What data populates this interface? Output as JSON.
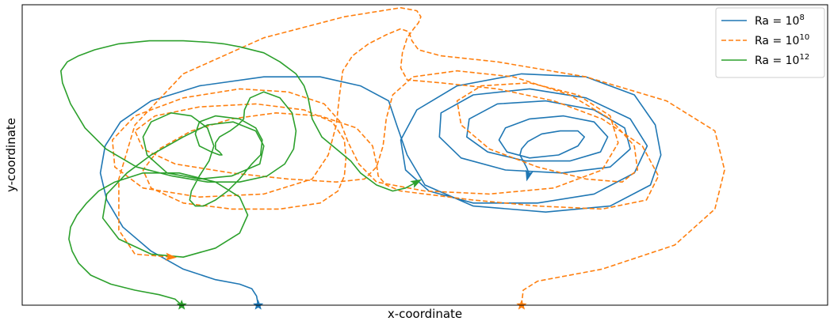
{
  "chart_data": {
    "type": "line",
    "title": "",
    "xlabel": "x-coordinate",
    "ylabel": "y-coordinate",
    "xlim": [
      0,
      1
    ],
    "ylim": [
      0,
      1
    ],
    "xticks": "none",
    "yticks": "none",
    "grid": false,
    "legend_position": "top-right",
    "series": [
      {
        "name": "Ra = 10^8",
        "label_base": "Ra = 10",
        "label_exp": "8",
        "color": "#1f77b4",
        "linestyle": "solid",
        "start_marker": "star",
        "end_marker": "arrow",
        "x": [
          0.293,
          0.291,
          0.285,
          0.27,
          0.24,
          0.2,
          0.16,
          0.125,
          0.105,
          0.097,
          0.103,
          0.122,
          0.16,
          0.22,
          0.3,
          0.37,
          0.42,
          0.455,
          0.465,
          0.478,
          0.5,
          0.56,
          0.65,
          0.73,
          0.78,
          0.793,
          0.786,
          0.76,
          0.7,
          0.62,
          0.54,
          0.49,
          0.47,
          0.476,
          0.505,
          0.56,
          0.64,
          0.71,
          0.76,
          0.776,
          0.755,
          0.7,
          0.63,
          0.56,
          0.52,
          0.518,
          0.545,
          0.6,
          0.67,
          0.73,
          0.755,
          0.748,
          0.71,
          0.65,
          0.59,
          0.555,
          0.552,
          0.578,
          0.625,
          0.68,
          0.718,
          0.727,
          0.71,
          0.672,
          0.63,
          0.6,
          0.592,
          0.602,
          0.63,
          0.666,
          0.69,
          0.698,
          0.69,
          0.668,
          0.645,
          0.628,
          0.62,
          0.618,
          0.622,
          0.626,
          0.629,
          0.628
        ],
        "y": [
          0.0,
          0.03,
          0.055,
          0.07,
          0.085,
          0.12,
          0.18,
          0.26,
          0.35,
          0.44,
          0.53,
          0.61,
          0.68,
          0.73,
          0.76,
          0.76,
          0.73,
          0.68,
          0.6,
          0.5,
          0.4,
          0.33,
          0.31,
          0.33,
          0.4,
          0.5,
          0.6,
          0.7,
          0.76,
          0.77,
          0.73,
          0.65,
          0.55,
          0.45,
          0.38,
          0.34,
          0.34,
          0.37,
          0.44,
          0.53,
          0.62,
          0.69,
          0.72,
          0.7,
          0.64,
          0.56,
          0.49,
          0.45,
          0.44,
          0.46,
          0.52,
          0.59,
          0.65,
          0.68,
          0.67,
          0.62,
          0.56,
          0.51,
          0.48,
          0.48,
          0.51,
          0.56,
          0.61,
          0.63,
          0.62,
          0.59,
          0.55,
          0.51,
          0.49,
          0.5,
          0.53,
          0.56,
          0.58,
          0.58,
          0.57,
          0.545,
          0.52,
          0.5,
          0.48,
          0.46,
          0.44,
          0.43
        ]
      },
      {
        "name": "Ra = 10^10",
        "label_base": "Ra = 10",
        "label_exp": "10",
        "color": "#ff7f0e",
        "linestyle": "dashed",
        "start_marker": "star",
        "end_marker": "arrow",
        "x": [
          0.62,
          0.622,
          0.64,
          0.72,
          0.81,
          0.86,
          0.872,
          0.86,
          0.8,
          0.7,
          0.59,
          0.52,
          0.492,
          0.484,
          0.48,
          0.47,
          0.452,
          0.43,
          0.41,
          0.398,
          0.394,
          0.39,
          0.38,
          0.36,
          0.3,
          0.22,
          0.15,
          0.115,
          0.112,
          0.14,
          0.2,
          0.27,
          0.33,
          0.375,
          0.395,
          0.405,
          0.418,
          0.44,
          0.5,
          0.58,
          0.66,
          0.72,
          0.74,
          0.73,
          0.69,
          0.63,
          0.57,
          0.54,
          0.545,
          0.58,
          0.64,
          0.7,
          0.745,
          0.764,
          0.76,
          0.73,
          0.68,
          0.61,
          0.54,
          0.485,
          0.46,
          0.452,
          0.448,
          0.44,
          0.425,
          0.39,
          0.33,
          0.26,
          0.19,
          0.15,
          0.14,
          0.165,
          0.22,
          0.29,
          0.35,
          0.385,
          0.4,
          0.402,
          0.4,
          0.392,
          0.37,
          0.32,
          0.26,
          0.2,
          0.16,
          0.15,
          0.17,
          0.21,
          0.26,
          0.315,
          0.37,
          0.415,
          0.435,
          0.44,
          0.442,
          0.452,
          0.47,
          0.5,
          0.56,
          0.64,
          0.72,
          0.775,
          0.79,
          0.77,
          0.72,
          0.66,
          0.59,
          0.52,
          0.478,
          0.47,
          0.472,
          0.478,
          0.486,
          0.492,
          0.495,
          0.49,
          0.47,
          0.4,
          0.3,
          0.2,
          0.14,
          0.12,
          0.12,
          0.14,
          0.185
        ],
        "y": [
          0.0,
          0.05,
          0.08,
          0.12,
          0.2,
          0.32,
          0.45,
          0.58,
          0.68,
          0.76,
          0.81,
          0.83,
          0.85,
          0.88,
          0.91,
          0.92,
          0.9,
          0.87,
          0.83,
          0.78,
          0.7,
          0.6,
          0.5,
          0.42,
          0.37,
          0.36,
          0.39,
          0.46,
          0.55,
          0.63,
          0.69,
          0.72,
          0.71,
          0.67,
          0.61,
          0.54,
          0.47,
          0.41,
          0.38,
          0.37,
          0.39,
          0.45,
          0.54,
          0.63,
          0.7,
          0.74,
          0.73,
          0.68,
          0.6,
          0.52,
          0.46,
          0.42,
          0.41,
          0.45,
          0.53,
          0.62,
          0.7,
          0.76,
          0.78,
          0.76,
          0.7,
          0.62,
          0.53,
          0.46,
          0.42,
          0.41,
          0.42,
          0.44,
          0.47,
          0.52,
          0.58,
          0.63,
          0.66,
          0.67,
          0.65,
          0.61,
          0.55,
          0.49,
          0.43,
          0.38,
          0.34,
          0.32,
          0.32,
          0.34,
          0.39,
          0.45,
          0.52,
          0.58,
          0.62,
          0.64,
          0.63,
          0.59,
          0.53,
          0.47,
          0.43,
          0.4,
          0.38,
          0.37,
          0.35,
          0.33,
          0.32,
          0.35,
          0.43,
          0.53,
          0.62,
          0.68,
          0.72,
          0.74,
          0.75,
          0.79,
          0.84,
          0.89,
          0.92,
          0.94,
          0.96,
          0.98,
          0.99,
          0.96,
          0.89,
          0.77,
          0.6,
          0.42,
          0.25,
          0.17,
          0.16
        ]
      },
      {
        "name": "Ra = 10^12",
        "label_base": "Ra = 10",
        "label_exp": "12",
        "color": "#2ca02c",
        "linestyle": "solid",
        "start_marker": "star",
        "end_marker": "arrow",
        "x": [
          0.198,
          0.19,
          0.17,
          0.14,
          0.11,
          0.085,
          0.07,
          0.062,
          0.058,
          0.06,
          0.068,
          0.08,
          0.095,
          0.115,
          0.15,
          0.195,
          0.24,
          0.27,
          0.28,
          0.27,
          0.24,
          0.2,
          0.16,
          0.12,
          0.1,
          0.105,
          0.13,
          0.16,
          0.2,
          0.23,
          0.262,
          0.29,
          0.3,
          0.295,
          0.26,
          0.22,
          0.18,
          0.155,
          0.15,
          0.16,
          0.185,
          0.21,
          0.23,
          0.238,
          0.232,
          0.22,
          0.21,
          0.208,
          0.215,
          0.225,
          0.24,
          0.255,
          0.27,
          0.285,
          0.296,
          0.298,
          0.29,
          0.27,
          0.24,
          0.22,
          0.215,
          0.22,
          0.235,
          0.245,
          0.248,
          0.245,
          0.24,
          0.24,
          0.245,
          0.258,
          0.268,
          0.275,
          0.276,
          0.283,
          0.3,
          0.32,
          0.335,
          0.34,
          0.337,
          0.326,
          0.304,
          0.27,
          0.23,
          0.186,
          0.142,
          0.104,
          0.078,
          0.06,
          0.05,
          0.048,
          0.056,
          0.07,
          0.09,
          0.12,
          0.158,
          0.2,
          0.232,
          0.25,
          0.27,
          0.3,
          0.32,
          0.34,
          0.35,
          0.355,
          0.36,
          0.372,
          0.39,
          0.408,
          0.42,
          0.43,
          0.44,
          0.46,
          0.476,
          0.49
        ],
        "y": [
          0.0,
          0.02,
          0.035,
          0.05,
          0.07,
          0.1,
          0.14,
          0.18,
          0.22,
          0.26,
          0.3,
          0.34,
          0.38,
          0.41,
          0.44,
          0.44,
          0.41,
          0.36,
          0.3,
          0.24,
          0.19,
          0.16,
          0.17,
          0.22,
          0.29,
          0.37,
          0.44,
          0.5,
          0.56,
          0.6,
          0.61,
          0.58,
          0.53,
          0.47,
          0.43,
          0.42,
          0.44,
          0.5,
          0.56,
          0.61,
          0.64,
          0.63,
          0.59,
          0.53,
          0.48,
          0.43,
          0.38,
          0.35,
          0.33,
          0.33,
          0.35,
          0.38,
          0.42,
          0.47,
          0.5,
          0.55,
          0.59,
          0.62,
          0.63,
          0.61,
          0.57,
          0.53,
          0.51,
          0.5,
          0.5,
          0.51,
          0.52,
          0.54,
          0.56,
          0.58,
          0.6,
          0.62,
          0.65,
          0.69,
          0.71,
          0.69,
          0.64,
          0.58,
          0.52,
          0.47,
          0.43,
          0.41,
          0.41,
          0.43,
          0.46,
          0.52,
          0.59,
          0.67,
          0.74,
          0.78,
          0.81,
          0.83,
          0.85,
          0.87,
          0.88,
          0.88,
          0.875,
          0.87,
          0.86,
          0.84,
          0.81,
          0.77,
          0.73,
          0.69,
          0.62,
          0.56,
          0.52,
          0.48,
          0.44,
          0.42,
          0.4,
          0.38,
          0.39,
          0.41
        ]
      }
    ]
  }
}
